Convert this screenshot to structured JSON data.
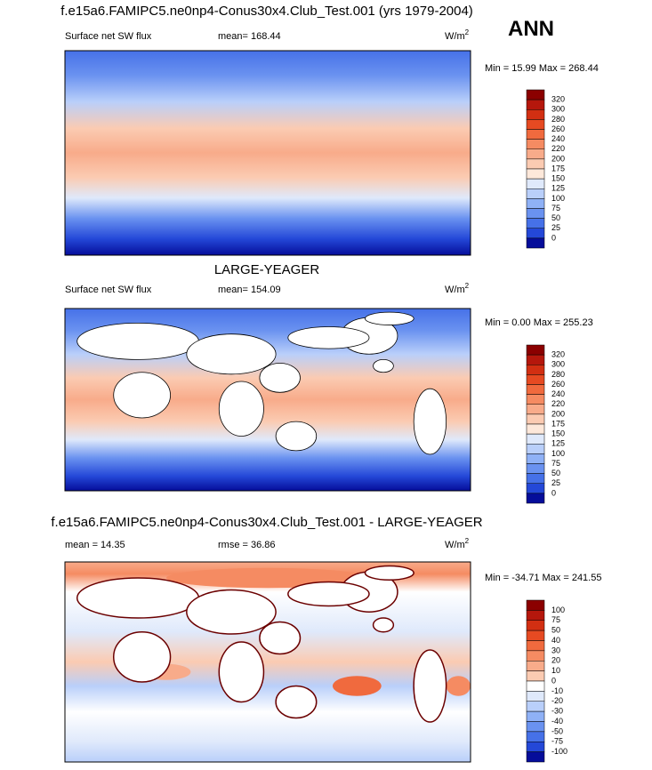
{
  "header": {
    "season": "ANN"
  },
  "panels": [
    {
      "title": "f.e15a6.FAMIPC5.ne0np4-Conus30x4.Club_Test.001 (yrs 1979-2004)",
      "left": "Surface net SW flux",
      "center": "mean= 168.44",
      "unit": "W/m",
      "unit_sup": "2",
      "minmax": "Min =  15.99 Max = 268.44",
      "colorbar": {
        "labels": [
          320,
          300,
          280,
          260,
          240,
          220,
          200,
          175,
          150,
          125,
          100,
          75,
          50,
          25,
          0
        ],
        "colors": [
          "#8b0000",
          "#b5170c",
          "#d22f12",
          "#e64a22",
          "#f06a3e",
          "#f58b62",
          "#f8ab8a",
          "#fbcbb2",
          "#fde8da",
          "#dfe9fb",
          "#b9cffa",
          "#8fb1f6",
          "#6a92f0",
          "#4671e8",
          "#2448d8",
          "#050d9a"
        ]
      }
    },
    {
      "title": "LARGE-YEAGER",
      "left": "Surface net SW flux",
      "center": "mean= 154.09",
      "unit": "W/m",
      "unit_sup": "2",
      "minmax": "Min =   0.00 Max = 255.23",
      "colorbar": {
        "labels": [
          320,
          300,
          280,
          260,
          240,
          220,
          200,
          175,
          150,
          125,
          100,
          75,
          50,
          25,
          0
        ],
        "colors": [
          "#8b0000",
          "#b5170c",
          "#d22f12",
          "#e64a22",
          "#f06a3e",
          "#f58b62",
          "#f8ab8a",
          "#fbcbb2",
          "#fde8da",
          "#dfe9fb",
          "#b9cffa",
          "#8fb1f6",
          "#6a92f0",
          "#4671e8",
          "#2448d8",
          "#050d9a"
        ]
      }
    },
    {
      "title": "f.e15a6.FAMIPC5.ne0np4-Conus30x4.Club_Test.001 - LARGE-YEAGER",
      "left": "mean =  14.35",
      "center": "rmse =  36.86",
      "unit": "W/m",
      "unit_sup": "2",
      "minmax": "Min = -34.71 Max = 241.55",
      "colorbar": {
        "labels": [
          100,
          75,
          50,
          40,
          30,
          20,
          10,
          0,
          -10,
          -20,
          -30,
          -40,
          -50,
          -75,
          -100
        ],
        "colors": [
          "#8b0000",
          "#b5170c",
          "#d22f12",
          "#e64a22",
          "#f06a3e",
          "#f58b62",
          "#f8ab8a",
          "#fbcbb2",
          "#ffffff",
          "#dfe9fb",
          "#b9cffa",
          "#8fb1f6",
          "#6a92f0",
          "#4671e8",
          "#2448d8",
          "#050d9a"
        ]
      }
    }
  ]
}
